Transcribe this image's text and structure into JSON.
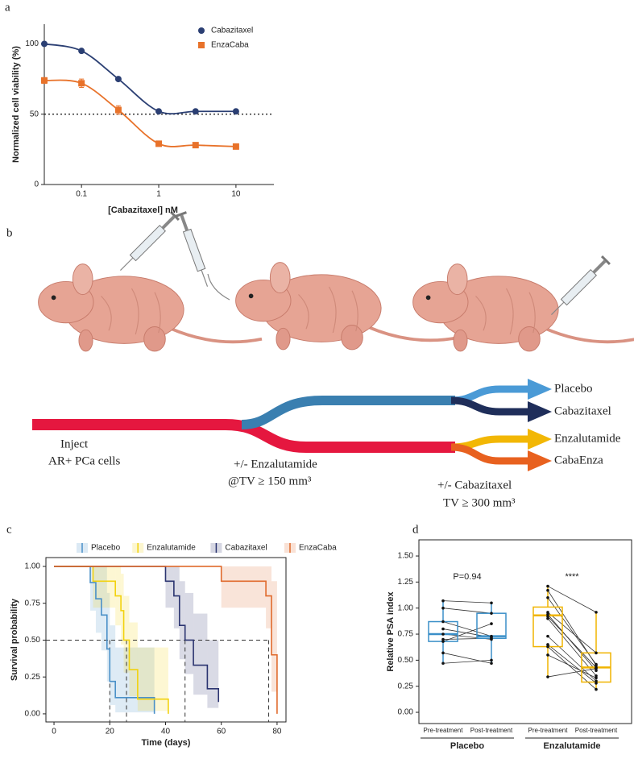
{
  "panel_labels": [
    "a",
    "b",
    "c",
    "d"
  ],
  "chart_data": [
    {
      "type": "dose_response",
      "x_label": "[Cabazitaxel] nM",
      "y_label": "Normalized cell viability (%)",
      "log_x": true,
      "xlim": [
        0.033,
        31
      ],
      "xticks": [
        0.1,
        1,
        10
      ],
      "ylim": [
        0,
        114
      ],
      "yticks": [
        0,
        50,
        100
      ],
      "hline": 50,
      "legend": "top-right",
      "x": [
        0.033,
        0.1,
        0.3,
        1,
        3,
        10
      ],
      "series": [
        {
          "name": "Cabazitaxel",
          "color": "#2b3f73",
          "marker": "circle",
          "values": [
            100,
            95,
            75,
            52,
            52,
            52
          ],
          "errors": [
            0,
            1,
            1,
            0,
            1,
            0
          ]
        },
        {
          "name": "EnzaCaba",
          "color": "#e8722a",
          "marker": "square",
          "values": [
            74,
            72,
            53,
            29,
            28,
            27
          ],
          "errors": [
            2,
            3,
            3,
            0,
            0,
            0
          ]
        }
      ]
    },
    {
      "type": "survival",
      "x_label": "Time (days)",
      "y_label": "Survival probability",
      "xlim": [
        -2.9,
        83.2
      ],
      "xticks": [
        0,
        20,
        40,
        60,
        80
      ],
      "ylim": [
        -0.055,
        1.06
      ],
      "yticks": [
        {
          "value": 0,
          "label": "0.00"
        },
        {
          "value": 0.25,
          "label": "0.25"
        },
        {
          "value": 0.5,
          "label": "0.50"
        },
        {
          "value": 0.75,
          "label": "0.75"
        },
        {
          "value": 1,
          "label": "1.00"
        }
      ],
      "median_y": 0.5,
      "medians": [
        20,
        26,
        47,
        77
      ],
      "legend": "top",
      "series": [
        {
          "name": "Placebo",
          "color": "#4a90c8",
          "x": [
            0,
            13,
            15,
            17,
            19,
            20,
            22,
            36
          ],
          "values": [
            1,
            0.89,
            0.78,
            0.67,
            0.44,
            0.22,
            0.11,
            0
          ],
          "lower": [
            1,
            0.7,
            0.55,
            0.43,
            0.22,
            0.06,
            0.01,
            0
          ],
          "upper": [
            1,
            1,
            1,
            1,
            0.82,
            0.6,
            0.45,
            0.3
          ]
        },
        {
          "name": "Enzalutamide",
          "color": "#f2d20d",
          "x": [
            0,
            14,
            22,
            24,
            25,
            27,
            30,
            41
          ],
          "values": [
            1,
            0.9,
            0.8,
            0.7,
            0.5,
            0.3,
            0.1,
            0
          ],
          "lower": [
            1,
            0.72,
            0.6,
            0.47,
            0.28,
            0.12,
            0.02,
            0
          ],
          "upper": [
            1,
            1,
            1,
            0.95,
            0.8,
            0.62,
            0.45,
            0.35
          ]
        },
        {
          "name": "Cabazitaxel",
          "color": "#2b3470",
          "x": [
            0,
            40,
            43,
            45,
            47,
            50,
            55,
            59
          ],
          "values": [
            1,
            0.9,
            0.8,
            0.6,
            0.5,
            0.33,
            0.17,
            0.08
          ],
          "lower": [
            1,
            0.72,
            0.58,
            0.37,
            0.27,
            0.13,
            0.04,
            0.01
          ],
          "upper": [
            1,
            1,
            1,
            0.9,
            0.82,
            0.68,
            0.5,
            0.4
          ]
        },
        {
          "name": "EnzaCaba",
          "color": "#e06a2c",
          "x": [
            0,
            60,
            76,
            78,
            80
          ],
          "values": [
            1,
            0.9,
            0.8,
            0.4,
            0
          ],
          "lower": [
            1,
            0.72,
            0.58,
            0.15,
            0
          ],
          "upper": [
            1,
            1,
            1,
            0.9,
            0.6
          ]
        }
      ]
    },
    {
      "type": "paired_box",
      "y_label": "Relative PSA index",
      "ylim": [
        -0.108,
        1.655
      ],
      "yticks": [
        {
          "value": 0,
          "label": "0.00"
        },
        {
          "value": 0.25,
          "label": "0.25"
        },
        {
          "value": 0.5,
          "label": "0.50"
        },
        {
          "value": 0.75,
          "label": "0.75"
        },
        {
          "value": 1,
          "label": "1.00"
        },
        {
          "value": 1.25,
          "label": "1.25"
        },
        {
          "value": 1.5,
          "label": "1.50"
        }
      ],
      "groups": [
        {
          "name": "Placebo",
          "color": "#3a8fc8",
          "annotation": "P=0.94",
          "boxes": [
            {
              "name": "Pre-treatment",
              "min": 0.47,
              "q1": 0.68,
              "median": 0.75,
              "q3": 0.87,
              "max": 1.07,
              "points": [
                1.07,
                1.0,
                0.87,
                0.8,
                0.75,
                0.7,
                0.68,
                0.57,
                0.47
              ]
            },
            {
              "name": "Post-treatment",
              "min": 0.47,
              "q1": 0.71,
              "median": 0.73,
              "q3": 0.95,
              "max": 1.05,
              "points": [
                1.05,
                0.95,
                0.73,
                0.72,
                0.7,
                0.71,
                0.85,
                0.47,
                0.5
              ]
            }
          ]
        },
        {
          "name": "Enzalutamide",
          "color": "#f0b400",
          "annotation": "****",
          "boxes": [
            {
              "name": "Pre-treatment",
              "min": 0.34,
              "q1": 0.63,
              "median": 0.93,
              "q3": 1.01,
              "max": 1.21,
              "points": [
                1.21,
                1.17,
                1.1,
                0.96,
                0.94,
                0.92,
                0.9,
                0.73,
                0.65,
                0.63,
                0.55,
                0.34
              ]
            },
            {
              "name": "Post-treatment",
              "min": 0.21,
              "q1": 0.29,
              "median": 0.43,
              "q3": 0.57,
              "max": 0.96,
              "points": [
                0.96,
                0.45,
                0.46,
                0.57,
                0.4,
                0.43,
                0.35,
                0.3,
                0.28,
                0.22,
                0.33,
                0.42
              ]
            }
          ]
        }
      ]
    }
  ],
  "diagram": {
    "arms": [
      {
        "name": "Placebo",
        "color": "#4a9ad6"
      },
      {
        "name": "Cabazitaxel",
        "color": "#1f2e5a"
      },
      {
        "name": "Enzalutamide",
        "color": "#f2b705"
      },
      {
        "name": "CabaEnza",
        "color": "#e8611f"
      }
    ],
    "steps": [
      {
        "lines": [
          "Inject",
          "AR+ PCa cells"
        ]
      },
      {
        "lines": [
          "+/- Enzalutamide",
          "@TV ≥ 150 mm³"
        ]
      },
      {
        "lines": [
          "+/- Cabazitaxel",
          "TV ≥ 300 mm³"
        ]
      }
    ]
  }
}
